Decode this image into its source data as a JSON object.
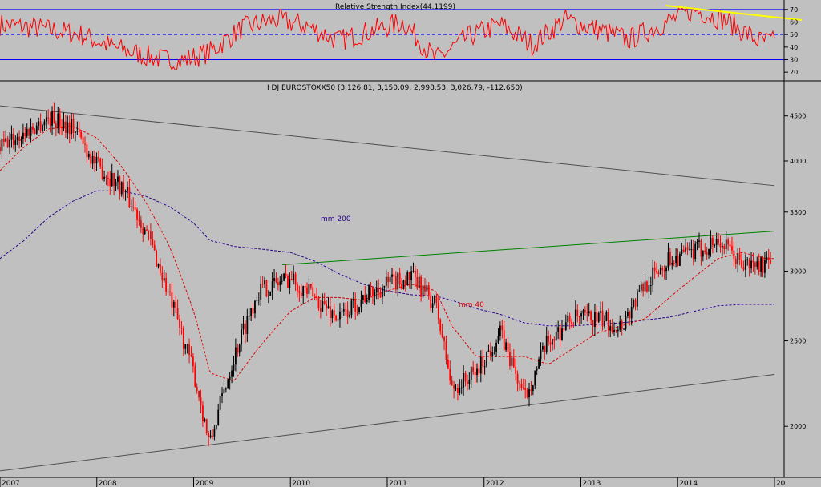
{
  "rsi_panel": {
    "title": "Relative Strength Index(44.1199)",
    "y_ticks": [
      "70",
      "60",
      "50",
      "40",
      "30",
      "20"
    ],
    "levels": {
      "upper": 70,
      "mid": 50,
      "lower": 30
    }
  },
  "price_panel": {
    "title": "I DJ EUROSTOXX50 (3,126.81, 3,150.09, 2,998.53, 3,026.79, -112.650)",
    "y_ticks": [
      "4500",
      "4000",
      "3500",
      "3000",
      "2500",
      "2000"
    ],
    "ma_labels": {
      "ma200": "mm 200",
      "ma40": "mm 40"
    }
  },
  "x_axis": {
    "year_labels": [
      "2007",
      "2008",
      "2009",
      "2010",
      "2011",
      "2012",
      "2013",
      "2014",
      "20"
    ]
  },
  "colors": {
    "background": "#c0c0c0",
    "rsi_line": "#ff0000",
    "rsi_bands": "#0000ff",
    "up_bar": "#000000",
    "down_bar": "#ff0000",
    "ma200": "#2a0090",
    "ma40": "#e00000",
    "resistance": "#008000",
    "trendline": "#505050",
    "rsi_trend": "#ffff00"
  },
  "chart_data": [
    {
      "type": "line",
      "title": "Relative Strength Index(44.1199)",
      "ylim": [
        15,
        75
      ],
      "reference_levels": [
        70,
        50,
        30
      ],
      "x": [
        "2007-01",
        "2007-06",
        "2007-11",
        "2008-03",
        "2008-07",
        "2008-11",
        "2009-03",
        "2009-07",
        "2009-11",
        "2010-03",
        "2010-07",
        "2010-11",
        "2011-03",
        "2011-07",
        "2011-11",
        "2012-03",
        "2012-07",
        "2012-11",
        "2013-03",
        "2013-07",
        "2013-11",
        "2014-03",
        "2014-07",
        "2014-11",
        "2015-01"
      ],
      "values": [
        58,
        55,
        50,
        40,
        33,
        28,
        36,
        55,
        62,
        57,
        45,
        53,
        60,
        30,
        48,
        58,
        42,
        62,
        54,
        46,
        58,
        70,
        61,
        45,
        44
      ]
    },
    {
      "type": "candlestick",
      "title": "I DJ EUROSTOXX50 (3,126.81, 3,150.09, 2,998.53, 3,026.79, -112.650)",
      "scale": "log",
      "ylim": [
        1750,
        4900
      ],
      "last_bar": {
        "open": 3126.81,
        "high": 3150.09,
        "low": 2998.53,
        "close": 3026.79,
        "change": -112.65
      },
      "x": [
        "2007-01",
        "2007-04",
        "2007-07",
        "2007-10",
        "2008-01",
        "2008-04",
        "2008-07",
        "2008-10",
        "2009-01",
        "2009-03",
        "2009-06",
        "2009-09",
        "2010-01",
        "2010-04",
        "2010-07",
        "2010-10",
        "2011-01",
        "2011-04",
        "2011-07",
        "2011-09",
        "2011-12",
        "2012-03",
        "2012-06",
        "2012-09",
        "2012-12",
        "2013-03",
        "2013-06",
        "2013-09",
        "2013-12",
        "2014-03",
        "2014-06",
        "2014-09",
        "2014-12"
      ],
      "close": [
        4150,
        4300,
        4480,
        4380,
        3950,
        3750,
        3350,
        2800,
        2300,
        1900,
        2400,
        2850,
        2950,
        2800,
        2650,
        2800,
        2900,
        2950,
        2750,
        2200,
        2300,
        2550,
        2150,
        2500,
        2650,
        2650,
        2600,
        2900,
        3100,
        3150,
        3250,
        3050,
        3050
      ],
      "series": [
        {
          "name": "mm 200",
          "values": [
            3100,
            3250,
            3450,
            3600,
            3700,
            3700,
            3650,
            3550,
            3400,
            3250,
            3200,
            3180,
            3150,
            3080,
            2980,
            2900,
            2850,
            2820,
            2810,
            2780,
            2720,
            2680,
            2620,
            2600,
            2600,
            2610,
            2620,
            2640,
            2660,
            2700,
            2740,
            2750,
            2750
          ]
        },
        {
          "name": "mm 40",
          "values": [
            3900,
            4150,
            4350,
            4380,
            4250,
            3950,
            3600,
            3200,
            2700,
            2300,
            2250,
            2450,
            2700,
            2800,
            2800,
            2780,
            2850,
            2900,
            2850,
            2600,
            2400,
            2400,
            2400,
            2350,
            2450,
            2550,
            2600,
            2650,
            2800,
            2950,
            3100,
            3150,
            3100
          ]
        }
      ],
      "lines": [
        {
          "name": "resistance",
          "from": [
            "2009-12",
            3050
          ],
          "to": [
            "2015-01",
            3330
          ]
        },
        {
          "name": "upper-trend",
          "from": [
            "2007-01",
            4620
          ],
          "to": [
            "2015-01",
            3750
          ]
        },
        {
          "name": "lower-trend",
          "from": [
            "2007-01",
            1780
          ],
          "to": [
            "2015-01",
            2290
          ]
        }
      ]
    }
  ]
}
